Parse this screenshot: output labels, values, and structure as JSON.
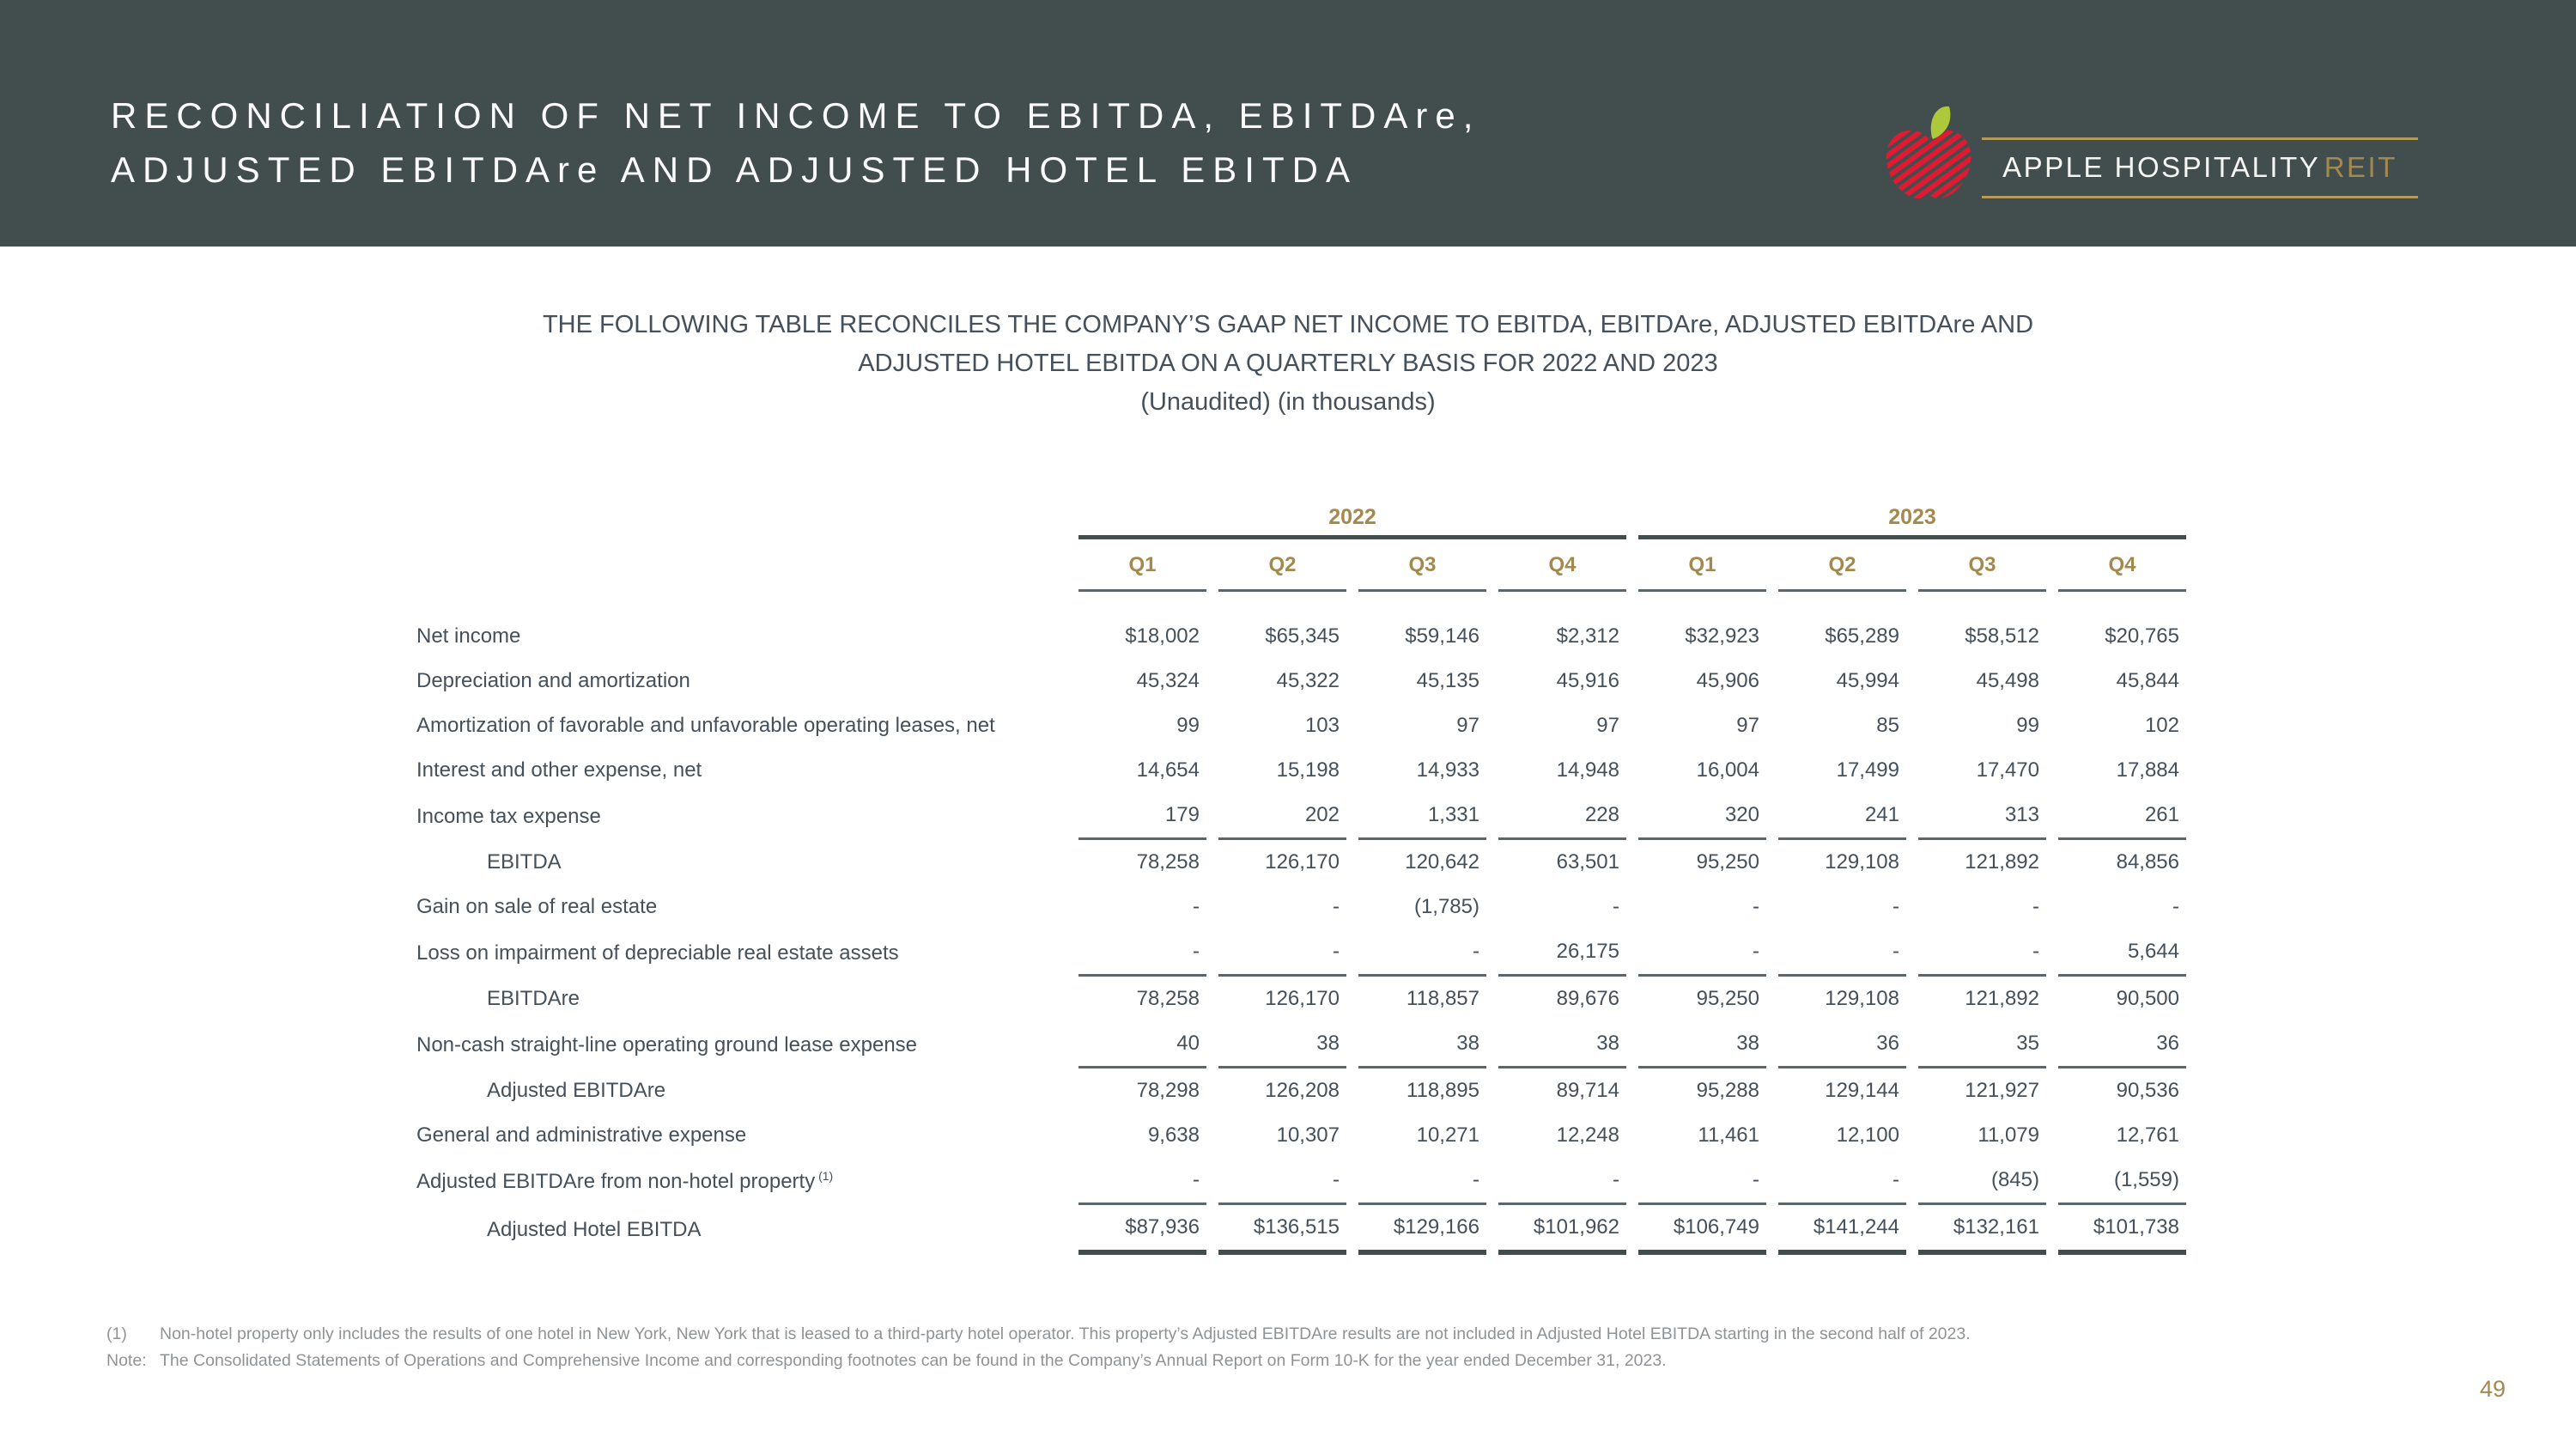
{
  "slide": {
    "page_number": "49"
  },
  "header": {
    "title_line1": "RECONCILIATION OF NET INCOME TO EBITDA, EBITDAre,",
    "title_line2": "ADJUSTED EBITDAre AND ADJUSTED HOTEL EBITDA",
    "logo": {
      "name_white": "APPLE HOSPITALITY",
      "name_gold": "REIT",
      "icon": "apple-logo"
    }
  },
  "intro": {
    "line1": "THE FOLLOWING TABLE RECONCILES THE COMPANY’S GAAP NET INCOME TO EBITDA, EBITDAre, ADJUSTED EBITDAre AND",
    "line2": "ADJUSTED HOTEL EBITDA ON A QUARTERLY BASIS FOR 2022 AND 2023",
    "line3": "(Unaudited) (in thousands)"
  },
  "table": {
    "year_groups": [
      "2022",
      "2023"
    ],
    "quarters": [
      "Q1",
      "Q2",
      "Q3",
      "Q4",
      "Q1",
      "Q2",
      "Q3",
      "Q4"
    ],
    "rows": [
      {
        "label": "Net income",
        "indent": false,
        "values": [
          "$18,002",
          "$65,345",
          "$59,146",
          "$2,312",
          "$32,923",
          "$65,289",
          "$58,512",
          "$20,765"
        ]
      },
      {
        "label": "Depreciation and amortization",
        "indent": false,
        "values": [
          "45,324",
          "45,322",
          "45,135",
          "45,916",
          "45,906",
          "45,994",
          "45,498",
          "45,844"
        ]
      },
      {
        "label": "Amortization of favorable and unfavorable operating leases, net",
        "indent": false,
        "values": [
          "99",
          "103",
          "97",
          "97",
          "97",
          "85",
          "99",
          "102"
        ]
      },
      {
        "label": "Interest and other expense, net",
        "indent": false,
        "values": [
          "14,654",
          "15,198",
          "14,933",
          "14,948",
          "16,004",
          "17,499",
          "17,470",
          "17,884"
        ]
      },
      {
        "label": "Income tax expense",
        "indent": false,
        "rule": true,
        "values": [
          "179",
          "202",
          "1,331",
          "228",
          "320",
          "241",
          "313",
          "261"
        ]
      },
      {
        "label": "EBITDA",
        "indent": true,
        "values": [
          "78,258",
          "126,170",
          "120,642",
          "63,501",
          "95,250",
          "129,108",
          "121,892",
          "84,856"
        ]
      },
      {
        "label": "Gain on sale of real estate",
        "indent": false,
        "values": [
          "-",
          "-",
          "(1,785)",
          "-",
          "-",
          "-",
          "-",
          "-"
        ]
      },
      {
        "label": "Loss on impairment of depreciable real estate assets",
        "indent": false,
        "rule": true,
        "values": [
          "-",
          "-",
          "-",
          "26,175",
          "-",
          "-",
          "-",
          "5,644"
        ]
      },
      {
        "label": "EBITDAre",
        "indent": true,
        "values": [
          "78,258",
          "126,170",
          "118,857",
          "89,676",
          "95,250",
          "129,108",
          "121,892",
          "90,500"
        ]
      },
      {
        "label": "Non-cash straight-line operating ground lease expense",
        "indent": false,
        "rule": true,
        "values": [
          "40",
          "38",
          "38",
          "38",
          "38",
          "36",
          "35",
          "36"
        ]
      },
      {
        "label": "Adjusted EBITDAre",
        "indent": true,
        "values": [
          "78,298",
          "126,208",
          "118,895",
          "89,714",
          "95,288",
          "129,144",
          "121,927",
          "90,536"
        ]
      },
      {
        "label": "General and administrative expense",
        "indent": false,
        "values": [
          "9,638",
          "10,307",
          "10,271",
          "12,248",
          "11,461",
          "12,100",
          "11,079",
          "12,761"
        ]
      },
      {
        "label": "Adjusted EBITDAre from non-hotel property",
        "sup": "(1)",
        "indent": false,
        "rule": true,
        "values": [
          "-",
          "-",
          "-",
          "-",
          "-",
          "-",
          "(845)",
          "(1,559)"
        ]
      },
      {
        "label": "Adjusted Hotel EBITDA",
        "indent": true,
        "total": true,
        "values": [
          "$87,936",
          "$136,515",
          "$129,166",
          "$101,962",
          "$106,749",
          "$141,244",
          "$132,161",
          "$101,738"
        ]
      }
    ]
  },
  "footnotes": [
    {
      "marker": "(1)",
      "text": "Non-hotel property only includes the results of one hotel in New York, New York that is leased to a third-party hotel operator. This property’s Adjusted EBITDAre results are not included in Adjusted Hotel EBITDA starting in the second half of 2023."
    },
    {
      "marker": "Note:",
      "text": "The Consolidated Statements of Operations and Comprehensive Income and corresponding footnotes can be found in the Company’s Annual Report on Form 10-K for the year ended December 31, 2023."
    }
  ],
  "colors": {
    "header_bg": "#424d4d",
    "gold": "#a3894d",
    "gold_line": "#b29b5b",
    "table_text": "#45505b",
    "rule_dark": "#424d4d",
    "rule_thin": "#5d666a",
    "footnote_gray": "#8f9396",
    "apple_red": "#e11a32",
    "leaf_green": "#adc83b",
    "title_white": "#fbfbfb",
    "body_bg": "#ffffff"
  }
}
